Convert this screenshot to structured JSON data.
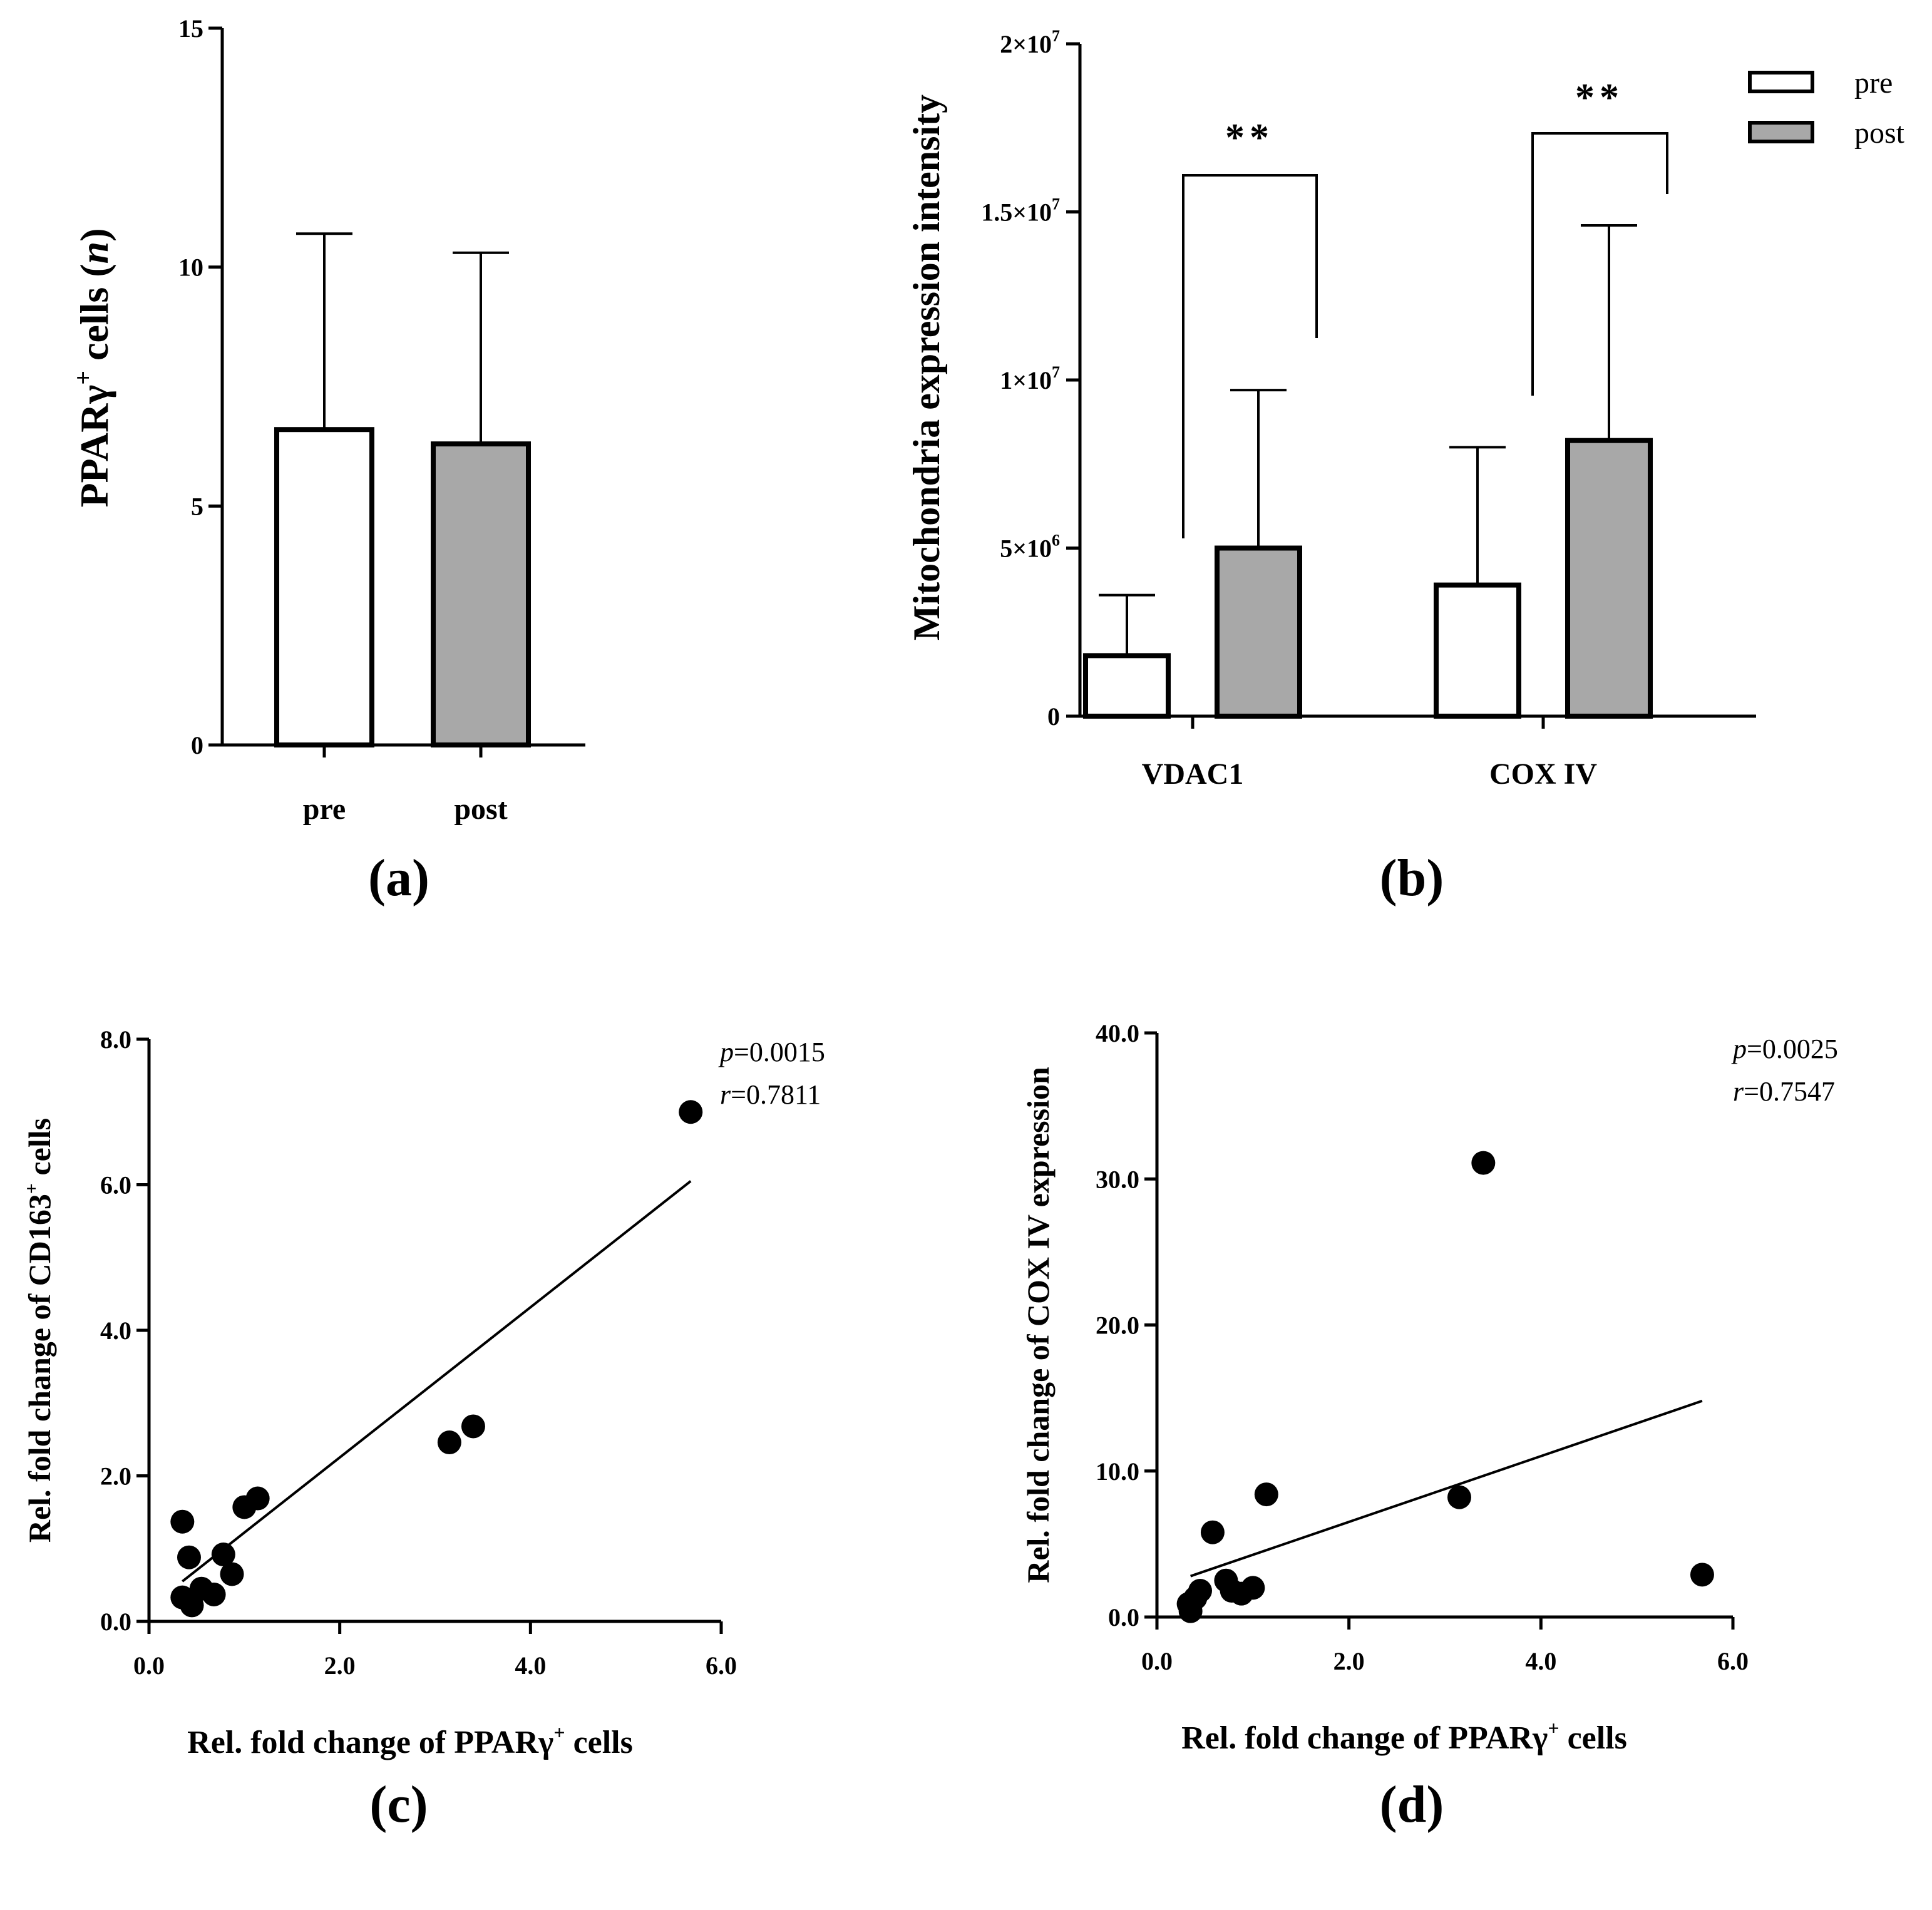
{
  "colors": {
    "pre": "#ffffff",
    "post": "#a8a8a8",
    "ink": "#000000"
  },
  "chart_data": [
    {
      "type": "bar",
      "panel_label": "(a)",
      "ylabel_main": "PPARγ",
      "ylabel_sup": "+",
      "ylabel_rest": " cells (",
      "ylabel_italic": "n",
      "ylabel_close": ")",
      "ylim": [
        0,
        15
      ],
      "yticks": [
        0,
        5,
        10,
        15
      ],
      "ytick_labels": [
        "0",
        "5",
        "10",
        "15"
      ],
      "categories": [
        "pre",
        "post"
      ],
      "values": [
        6.6,
        6.3
      ],
      "errors": [
        4.1,
        4.0
      ]
    },
    {
      "type": "bar",
      "panel_label": "(b)",
      "ylabel": "Mitochondria expression intensity",
      "ylim": [
        0,
        20000000
      ],
      "yticks": [
        0,
        5000000,
        10000000,
        15000000,
        20000000
      ],
      "ytick_labels": [
        {
          "base": "0",
          "exp": ""
        },
        {
          "base": "5×10",
          "exp": "6"
        },
        {
          "base": "1×10",
          "exp": "7"
        },
        {
          "base": "1.5×10",
          "exp": "7"
        },
        {
          "base": "2×10",
          "exp": "7"
        }
      ],
      "categories": [
        "VDAC1",
        "COX IV"
      ],
      "series": [
        {
          "name": "pre",
          "values": [
            1800000,
            3900000
          ],
          "errors": [
            1800000,
            4100000
          ]
        },
        {
          "name": "post",
          "values": [
            5000000,
            8200000
          ],
          "errors": [
            4700000,
            6400000
          ]
        }
      ],
      "legend": [
        "pre",
        "post"
      ],
      "legend_position": "top-right",
      "significance": [
        "**",
        "**"
      ]
    },
    {
      "type": "scatter",
      "panel_label": "(c)",
      "xlabel_main": "Rel. fold change of PPARγ",
      "xlabel_sup": "+",
      "xlabel_rest": " cells",
      "ylabel_main": "Rel. fold change of CD163",
      "ylabel_sup": "+",
      "ylabel_rest": " cells",
      "xlim": [
        0,
        6
      ],
      "ylim": [
        0,
        8
      ],
      "xticks": [
        0,
        2,
        4,
        6
      ],
      "xtick_labels": [
        "0.0",
        "2.0",
        "4.0",
        "6.0"
      ],
      "yticks": [
        0,
        2,
        4,
        6,
        8
      ],
      "ytick_labels": [
        "0.0",
        "2.0",
        "4.0",
        "6.0",
        "8.0"
      ],
      "points": [
        {
          "x": 0.35,
          "y": 1.37
        },
        {
          "x": 0.42,
          "y": 0.88
        },
        {
          "x": 0.35,
          "y": 0.33
        },
        {
          "x": 0.45,
          "y": 0.22
        },
        {
          "x": 0.55,
          "y": 0.45
        },
        {
          "x": 0.68,
          "y": 0.37
        },
        {
          "x": 0.78,
          "y": 0.92
        },
        {
          "x": 0.87,
          "y": 0.65
        },
        {
          "x": 1.0,
          "y": 1.57
        },
        {
          "x": 1.14,
          "y": 1.69
        },
        {
          "x": 3.15,
          "y": 2.46
        },
        {
          "x": 3.4,
          "y": 2.68
        },
        {
          "x": 5.68,
          "y": 7.0
        }
      ],
      "fit_line": {
        "x": [
          0.35,
          5.68
        ],
        "y": [
          0.55,
          6.05
        ]
      },
      "stats": {
        "p_label": "p",
        "p_value": "=0.0015",
        "r_label": "r",
        "r_value": "=0.7811"
      }
    },
    {
      "type": "scatter",
      "panel_label": "(d)",
      "xlabel_main": "Rel. fold change of PPARγ",
      "xlabel_sup": "+",
      "xlabel_rest": " cells",
      "ylabel": "Rel. fold change of COX IV expression",
      "xlim": [
        0,
        6
      ],
      "ylim": [
        0,
        40
      ],
      "xticks": [
        0,
        2,
        4,
        6
      ],
      "xtick_labels": [
        "0.0",
        "2.0",
        "4.0",
        "6.0"
      ],
      "yticks": [
        0,
        10,
        20,
        30,
        40
      ],
      "ytick_labels": [
        "0.0",
        "10.0",
        "20.0",
        "30.0",
        "40.0"
      ],
      "points": [
        {
          "x": 0.35,
          "y": 0.4
        },
        {
          "x": 0.33,
          "y": 0.9
        },
        {
          "x": 0.4,
          "y": 1.3
        },
        {
          "x": 0.45,
          "y": 1.8
        },
        {
          "x": 0.58,
          "y": 5.8
        },
        {
          "x": 0.72,
          "y": 2.5
        },
        {
          "x": 0.78,
          "y": 1.8
        },
        {
          "x": 0.88,
          "y": 1.6
        },
        {
          "x": 1.0,
          "y": 2.0
        },
        {
          "x": 1.14,
          "y": 8.4
        },
        {
          "x": 3.15,
          "y": 8.2
        },
        {
          "x": 3.4,
          "y": 31.1
        },
        {
          "x": 5.68,
          "y": 2.9
        }
      ],
      "fit_line": {
        "x": [
          0.35,
          5.68
        ],
        "y": [
          2.8,
          14.8
        ]
      },
      "stats": {
        "p_label": "p",
        "p_value": "=0.0025",
        "r_label": "r",
        "r_value": "=0.7547"
      }
    }
  ]
}
